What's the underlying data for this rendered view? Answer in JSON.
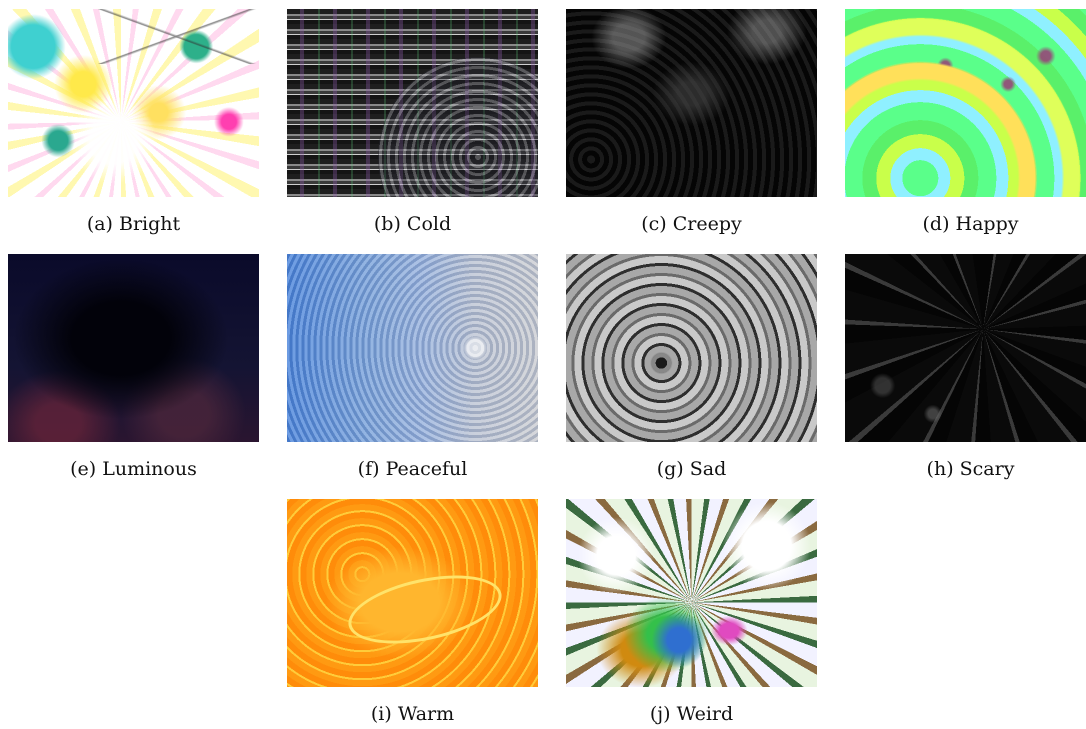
{
  "figure": {
    "panels": [
      {
        "caption": "(a) Bright",
        "style": "bright"
      },
      {
        "caption": "(b) Cold",
        "style": "cold"
      },
      {
        "caption": "(c) Creepy",
        "style": "creepy"
      },
      {
        "caption": "(d) Happy",
        "style": "happy"
      },
      {
        "caption": "(e) Luminous",
        "style": "luminous"
      },
      {
        "caption": "(f) Peaceful",
        "style": "peaceful"
      },
      {
        "caption": "(g) Sad",
        "style": "sad"
      },
      {
        "caption": "(h) Scary",
        "style": "scary"
      },
      {
        "caption": "(i) Warm",
        "style": "warm"
      },
      {
        "caption": "(j) Weird",
        "style": "weird"
      }
    ]
  }
}
